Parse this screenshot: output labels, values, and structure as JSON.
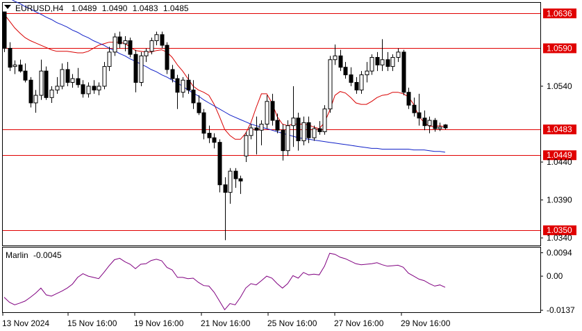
{
  "chart_data": [
    {
      "type": "candlestick",
      "title": "EURUSD,H4  1.0489 1.0490 1.0483 1.0485",
      "symbol": "EURUSD,H4",
      "ohlc_label": {
        "open": "1.0489",
        "high": "1.0490",
        "low": "1.0483",
        "close": "1.0485"
      },
      "y_ticks": [
        "1.0540",
        "1.0440",
        "1.0390",
        "1.0340"
      ],
      "ylim": [
        1.033,
        1.065
      ],
      "x_ticks": [
        "13 Nov 2024",
        "15 Nov 16:00",
        "19 Nov 16:00",
        "21 Nov 16:00",
        "25 Nov 16:00",
        "27 Nov 16:00",
        "29 Nov 16:00"
      ],
      "horizontal_levels": [
        {
          "label": "1.0636",
          "value": 1.0636
        },
        {
          "label": "1.0590",
          "value": 1.059
        },
        {
          "label": "1.0483",
          "value": 1.0483
        },
        {
          "label": "1.0449",
          "value": 1.0449
        },
        {
          "label": "1.0350",
          "value": 1.035
        }
      ],
      "candles": [
        [
          1.0638,
          1.0638,
          1.0585,
          1.059
        ],
        [
          1.059,
          1.0598,
          1.056,
          1.0565
        ],
        [
          1.0566,
          1.0574,
          1.0556,
          1.0568
        ],
        [
          1.0568,
          1.0575,
          1.0558,
          1.056
        ],
        [
          1.056,
          1.057,
          1.0545,
          1.0548
        ],
        [
          1.0548,
          1.0552,
          1.0512,
          1.0518
        ],
        [
          1.0518,
          1.0535,
          1.0505,
          1.0528
        ],
        [
          1.0528,
          1.0575,
          1.0522,
          1.056
        ],
        [
          1.056,
          1.0566,
          1.0522,
          1.0525
        ],
        [
          1.0525,
          1.054,
          1.0518,
          1.0535
        ],
        [
          1.0535,
          1.0552,
          1.053,
          1.054
        ],
        [
          1.054,
          1.057,
          1.0536,
          1.0562
        ],
        [
          1.0562,
          1.0572,
          1.054,
          1.0545
        ],
        [
          1.0545,
          1.0556,
          1.0538,
          1.055
        ],
        [
          1.055,
          1.0564,
          1.0538,
          1.0542
        ],
        [
          1.0542,
          1.0548,
          1.0525,
          1.053
        ],
        [
          1.053,
          1.0545,
          1.0525,
          1.054
        ],
        [
          1.054,
          1.0548,
          1.053,
          1.0535
        ],
        [
          1.0535,
          1.0545,
          1.0528,
          1.054
        ],
        [
          1.054,
          1.0572,
          1.0536,
          1.0566
        ],
        [
          1.0566,
          1.0592,
          1.056,
          1.0585
        ],
        [
          1.0585,
          1.061,
          1.058,
          1.0605
        ],
        [
          1.0605,
          1.0612,
          1.059,
          1.0596
        ],
        [
          1.0596,
          1.0606,
          1.0586,
          1.06
        ],
        [
          1.06,
          1.0604,
          1.0578,
          1.0582
        ],
        [
          1.0582,
          1.0588,
          1.0532,
          1.0545
        ],
        [
          1.0545,
          1.0585,
          1.054,
          1.058
        ],
        [
          1.058,
          1.059,
          1.0572,
          1.0586
        ],
        [
          1.0586,
          1.0604,
          1.0582,
          1.06
        ],
        [
          1.06,
          1.0612,
          1.0594,
          1.0608
        ],
        [
          1.0608,
          1.0612,
          1.059,
          1.0594
        ],
        [
          1.0594,
          1.0598,
          1.0556,
          1.0562
        ],
        [
          1.0562,
          1.0568,
          1.0545,
          1.055
        ],
        [
          1.055,
          1.0555,
          1.051,
          1.0532
        ],
        [
          1.0532,
          1.0552,
          1.0525,
          1.0548
        ],
        [
          1.0548,
          1.0556,
          1.053,
          1.0535
        ],
        [
          1.0535,
          1.0548,
          1.051,
          1.0518
        ],
        [
          1.0518,
          1.0528,
          1.0502,
          1.0505
        ],
        [
          1.0505,
          1.051,
          1.047,
          1.0478
        ],
        [
          1.0478,
          1.0488,
          1.0465,
          1.0472
        ],
        [
          1.0472,
          1.0478,
          1.0458,
          1.0466
        ],
        [
          1.0466,
          1.047,
          1.04,
          1.041
        ],
        [
          1.041,
          1.042,
          1.0337,
          1.04
        ],
        [
          1.04,
          1.0432,
          1.0385,
          1.0428
        ],
        [
          1.0428,
          1.0432,
          1.0406,
          1.0418
        ],
        [
          1.0418,
          1.0422,
          1.0398,
          1.0415
        ],
        [
          1.0448,
          1.048,
          1.044,
          1.0475
        ],
        [
          1.0475,
          1.049,
          1.047,
          1.0485
        ],
        [
          1.0485,
          1.05,
          1.045,
          1.0482
        ],
        [
          1.0482,
          1.0495,
          1.0462,
          1.049
        ],
        [
          1.049,
          1.0528,
          1.0484,
          1.052
        ],
        [
          1.052,
          1.053,
          1.0488,
          1.0495
        ],
        [
          1.0495,
          1.0504,
          1.0478,
          1.0482
        ],
        [
          1.0482,
          1.049,
          1.0442,
          1.0455
        ],
        [
          1.0455,
          1.0495,
          1.0448,
          1.0488
        ],
        [
          1.0488,
          1.054,
          1.046,
          1.0498
        ],
        [
          1.0498,
          1.0505,
          1.0455,
          1.0468
        ],
        [
          1.0468,
          1.05,
          1.0462,
          1.0492
        ],
        [
          1.0492,
          1.05,
          1.0465,
          1.0472
        ],
        [
          1.0472,
          1.0488,
          1.0468,
          1.0484
        ],
        [
          1.0484,
          1.0494,
          1.0476,
          1.048
        ],
        [
          1.048,
          1.0515,
          1.0476,
          1.051
        ],
        [
          1.051,
          1.058,
          1.0505,
          1.0575
        ],
        [
          1.0575,
          1.0595,
          1.0568,
          1.058
        ],
        [
          1.058,
          1.0588,
          1.056,
          1.0565
        ],
        [
          1.0565,
          1.0572,
          1.055,
          1.0555
        ],
        [
          1.0555,
          1.0565,
          1.054,
          1.0545
        ],
        [
          1.0545,
          1.0552,
          1.053,
          1.0535
        ],
        [
          1.0535,
          1.056,
          1.053,
          1.0555
        ],
        [
          1.0555,
          1.0572,
          1.0545,
          1.056
        ],
        [
          1.056,
          1.0582,
          1.0555,
          1.0578
        ],
        [
          1.0578,
          1.0585,
          1.056,
          1.0568
        ],
        [
          1.0568,
          1.0602,
          1.056,
          1.0575
        ],
        [
          1.0575,
          1.0585,
          1.056,
          1.0566
        ],
        [
          1.0566,
          1.0582,
          1.056,
          1.0578
        ],
        [
          1.0578,
          1.059,
          1.0572,
          1.0585
        ],
        [
          1.0585,
          1.0588,
          1.0528,
          1.0532
        ],
        [
          1.0532,
          1.0538,
          1.051,
          1.0515
        ],
        [
          1.0515,
          1.0525,
          1.05,
          1.0505
        ],
        [
          1.0505,
          1.053,
          1.0488,
          1.0498
        ],
        [
          1.0498,
          1.0508,
          1.0482,
          1.0488
        ],
        [
          1.0488,
          1.05,
          1.0478,
          1.0495
        ],
        [
          1.0495,
          1.0498,
          1.048,
          1.0484
        ],
        [
          1.0484,
          1.0492,
          1.0481,
          1.0486
        ],
        [
          1.0489,
          1.049,
          1.0483,
          1.0485
        ]
      ],
      "series": [
        {
          "name": "",
          "color": "#d90000",
          "values": [
            1.0635,
            1.0626,
            1.0617,
            1.061,
            1.0604,
            1.06,
            1.0597,
            1.0594,
            1.0591,
            1.0588,
            1.0586,
            1.0586,
            1.0586,
            1.0585,
            1.0584,
            1.0584,
            1.0586,
            1.059,
            1.0594,
            1.0596,
            1.0598,
            1.0598,
            1.0598,
            1.0596,
            1.0592,
            1.0587,
            1.0586,
            1.0585,
            1.0585,
            1.0587,
            1.0588,
            1.0585,
            1.0578,
            1.0568,
            1.056,
            1.055,
            1.054,
            1.0535,
            1.0532,
            1.0528,
            1.0516,
            1.05,
            1.0483,
            1.0475,
            1.047,
            1.047,
            1.0478,
            1.0492,
            1.0512,
            1.053,
            1.053,
            1.0518,
            1.05,
            1.049,
            1.0488,
            1.049,
            1.049,
            1.049,
            1.0489,
            1.0486,
            1.0484,
            1.0492,
            1.0508,
            1.0528,
            1.0533,
            1.0531,
            1.0525,
            1.0518,
            1.0516,
            1.0516,
            1.052,
            1.0525,
            1.0528,
            1.0529,
            1.0532,
            1.0532,
            1.053,
            1.0526,
            1.0516,
            1.05,
            1.0492,
            1.0487,
            1.0487,
            1.0488,
            1.0486
          ]
        },
        {
          "name": "",
          "color": "#1020c8",
          "values": [
            1.066,
            1.0656,
            1.0652,
            1.0649,
            1.0645,
            1.0642,
            1.0638,
            1.0635,
            1.0631,
            1.0628,
            1.0624,
            1.0621,
            1.0618,
            1.0614,
            1.0611,
            1.0607,
            1.0604,
            1.06,
            1.0597,
            1.0594,
            1.059,
            1.0587,
            1.0583,
            1.058,
            1.0576,
            1.0573,
            1.0569,
            1.0566,
            1.0562,
            1.0559,
            1.0555,
            1.0552,
            1.0548,
            1.0544,
            1.054,
            1.0535,
            1.0531,
            1.0527,
            1.0522,
            1.0518,
            1.0514,
            1.051,
            1.0506,
            1.0502,
            1.0499,
            1.0496,
            1.0493,
            1.049,
            1.0488,
            1.0486,
            1.0484,
            1.0482,
            1.048,
            1.0478,
            1.0476,
            1.0474,
            1.0472,
            1.0471,
            1.047,
            1.0469,
            1.0468,
            1.0467,
            1.0466,
            1.0465,
            1.0464,
            1.0463,
            1.0462,
            1.0461,
            1.046,
            1.0459,
            1.0458,
            1.0458,
            1.0457,
            1.0457,
            1.0457,
            1.0457,
            1.0457,
            1.0457,
            1.0456,
            1.0456,
            1.0456,
            1.0455,
            1.0454,
            1.0454,
            1.0453
          ]
        }
      ]
    },
    {
      "type": "line",
      "title": "Marlin -0.0045",
      "indicator": "Marlin",
      "current_value": "-0.0045",
      "y_ticks": [
        "0.0094",
        "0.00",
        "-0.0137"
      ],
      "ylim": [
        -0.0145,
        0.0115
      ],
      "series": [
        {
          "name": "Marlin",
          "color": "#800080",
          "values": [
            -0.0085,
            -0.0105,
            -0.0115,
            -0.0108,
            -0.01,
            -0.0085,
            -0.0068,
            -0.0048,
            -0.0075,
            -0.008,
            -0.007,
            -0.006,
            -0.0048,
            -0.0032,
            -0.0005,
            0.001,
            0.0,
            -0.0005,
            -0.001,
            0.0015,
            0.0042,
            0.0066,
            0.0072,
            0.0058,
            0.0048,
            0.003,
            0.0048,
            0.005,
            0.0063,
            0.0068,
            0.0062,
            0.0035,
            0.0025,
            -0.0005,
            -0.0005,
            -0.001,
            -0.0008,
            -0.0025,
            -0.0038,
            -0.004,
            -0.0065,
            -0.01,
            -0.0135,
            -0.011,
            -0.0115,
            -0.0085,
            -0.0048,
            -0.003,
            -0.0035,
            -0.0018,
            0.0,
            -0.0008,
            -0.003,
            -0.0048,
            -0.003,
            0.0002,
            -0.0008,
            0.0015,
            0.0005,
            0.0008,
            0.0005,
            0.004,
            0.0092,
            0.0088,
            0.0076,
            0.007,
            0.006,
            0.005,
            0.0046,
            0.0048,
            0.005,
            0.0054,
            0.0046,
            0.004,
            0.0042,
            0.0044,
            0.0036,
            0.0012,
            0.0,
            -0.0012,
            -0.0018,
            -0.003,
            -0.004,
            -0.0035,
            -0.0045
          ]
        }
      ]
    }
  ]
}
